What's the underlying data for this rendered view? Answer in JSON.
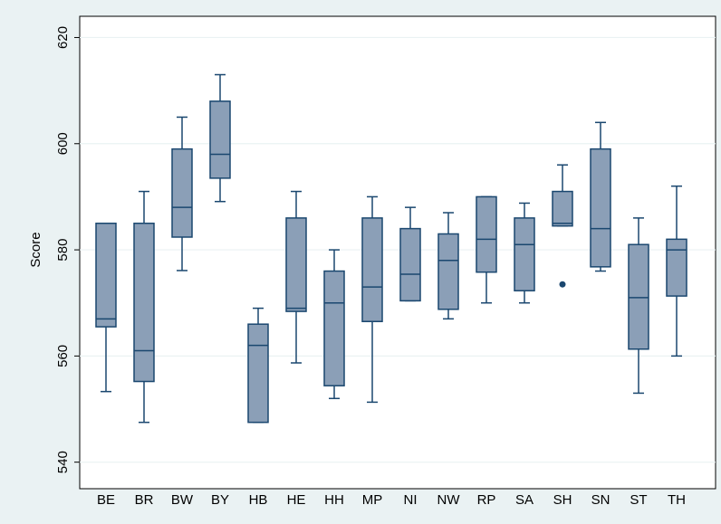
{
  "chart_data": {
    "type": "box",
    "y_label": "Score",
    "categories": [
      "BE",
      "BR",
      "BW",
      "BY",
      "HB",
      "HE",
      "HH",
      "MP",
      "NI",
      "NW",
      "RP",
      "SA",
      "SH",
      "SN",
      "ST",
      "TH"
    ],
    "min": [
      553.3,
      547.5,
      576.1,
      589.1,
      547.5,
      558.7,
      552.0,
      551.3,
      570.4,
      567.0,
      570.0,
      570.0,
      584.5,
      576.0,
      553.0,
      560.0
    ],
    "q1": [
      565.5,
      555.2,
      582.4,
      593.5,
      547.5,
      568.4,
      554.4,
      566.5,
      570.4,
      568.8,
      575.8,
      572.3,
      584.5,
      576.8,
      561.3,
      571.3
    ],
    "median": [
      567.0,
      561.0,
      588.0,
      598.0,
      562.0,
      569.0,
      570.0,
      573.0,
      575.4,
      578.0,
      582.0,
      581.0,
      585.0,
      584.0,
      571.0,
      580.0
    ],
    "q3": [
      585.0,
      585.0,
      599.0,
      608.0,
      566.0,
      586.0,
      576.0,
      586.0,
      584.0,
      583.0,
      590.0,
      586.0,
      591.0,
      599.0,
      581.0,
      582.0
    ],
    "max": [
      585.0,
      591.0,
      605.0,
      613.0,
      569.0,
      591.0,
      580.0,
      590.0,
      588.0,
      587.0,
      590.0,
      588.8,
      596.0,
      604.0,
      586.0,
      592.0
    ],
    "outliers": {
      "x": [
        "SH"
      ],
      "values": [
        573.5
      ]
    },
    "color": "#8b9fb7",
    "line_color": "#1a476f",
    "ylim": [
      535,
      624
    ],
    "yticks": [
      540,
      560,
      580,
      600,
      620
    ],
    "grid": true
  }
}
